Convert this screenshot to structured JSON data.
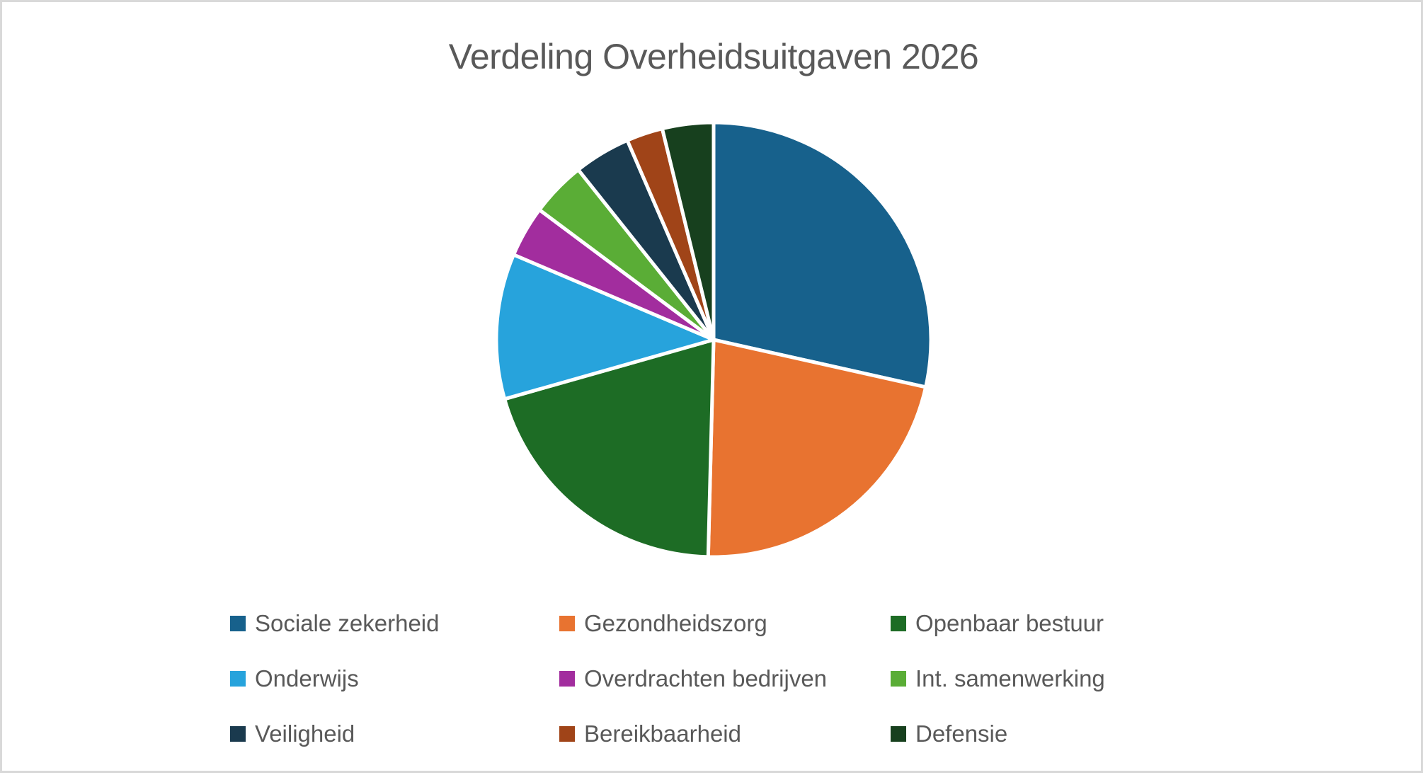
{
  "page": {
    "background_color": "#FFFFFF",
    "border_color": "#D9D9D9"
  },
  "chart_data": {
    "type": "pie",
    "title": "Verdeling Overheidsuitgaven 2026",
    "title_color": "#595959",
    "text_color": "#595959",
    "unit": "percent",
    "start_angle_deg_from_top": 0,
    "direction": "clockwise",
    "separator_color": "#FFFFFF",
    "legend_position": "bottom",
    "legend_grid": {
      "rows": 3,
      "cols": 3
    },
    "categories": [
      "Sociale zekerheid",
      "Gezondheidszorg",
      "Openbaar bestuur",
      "Onderwijs",
      "Overdrachten bedrijven",
      "Int. samenwerking",
      "Veiligheid",
      "Bereikbaarheid",
      "Defensie"
    ],
    "values": [
      28.5,
      21.9,
      20.2,
      10.8,
      3.8,
      4.1,
      4.2,
      2.7,
      3.8
    ],
    "colors": [
      "#17618C",
      "#E87330",
      "#1D6C25",
      "#27A3DC",
      "#A22D9E",
      "#5AAD36",
      "#1A3A4E",
      "#A04418",
      "#17401E"
    ],
    "slugs": [
      "sociale-zekerheid",
      "gezondheidszorg",
      "openbaar-bestuur",
      "onderwijs",
      "overdrachten-bedrijven",
      "int-samenwerking",
      "veiligheid",
      "bereikbaarheid",
      "defensie"
    ]
  }
}
